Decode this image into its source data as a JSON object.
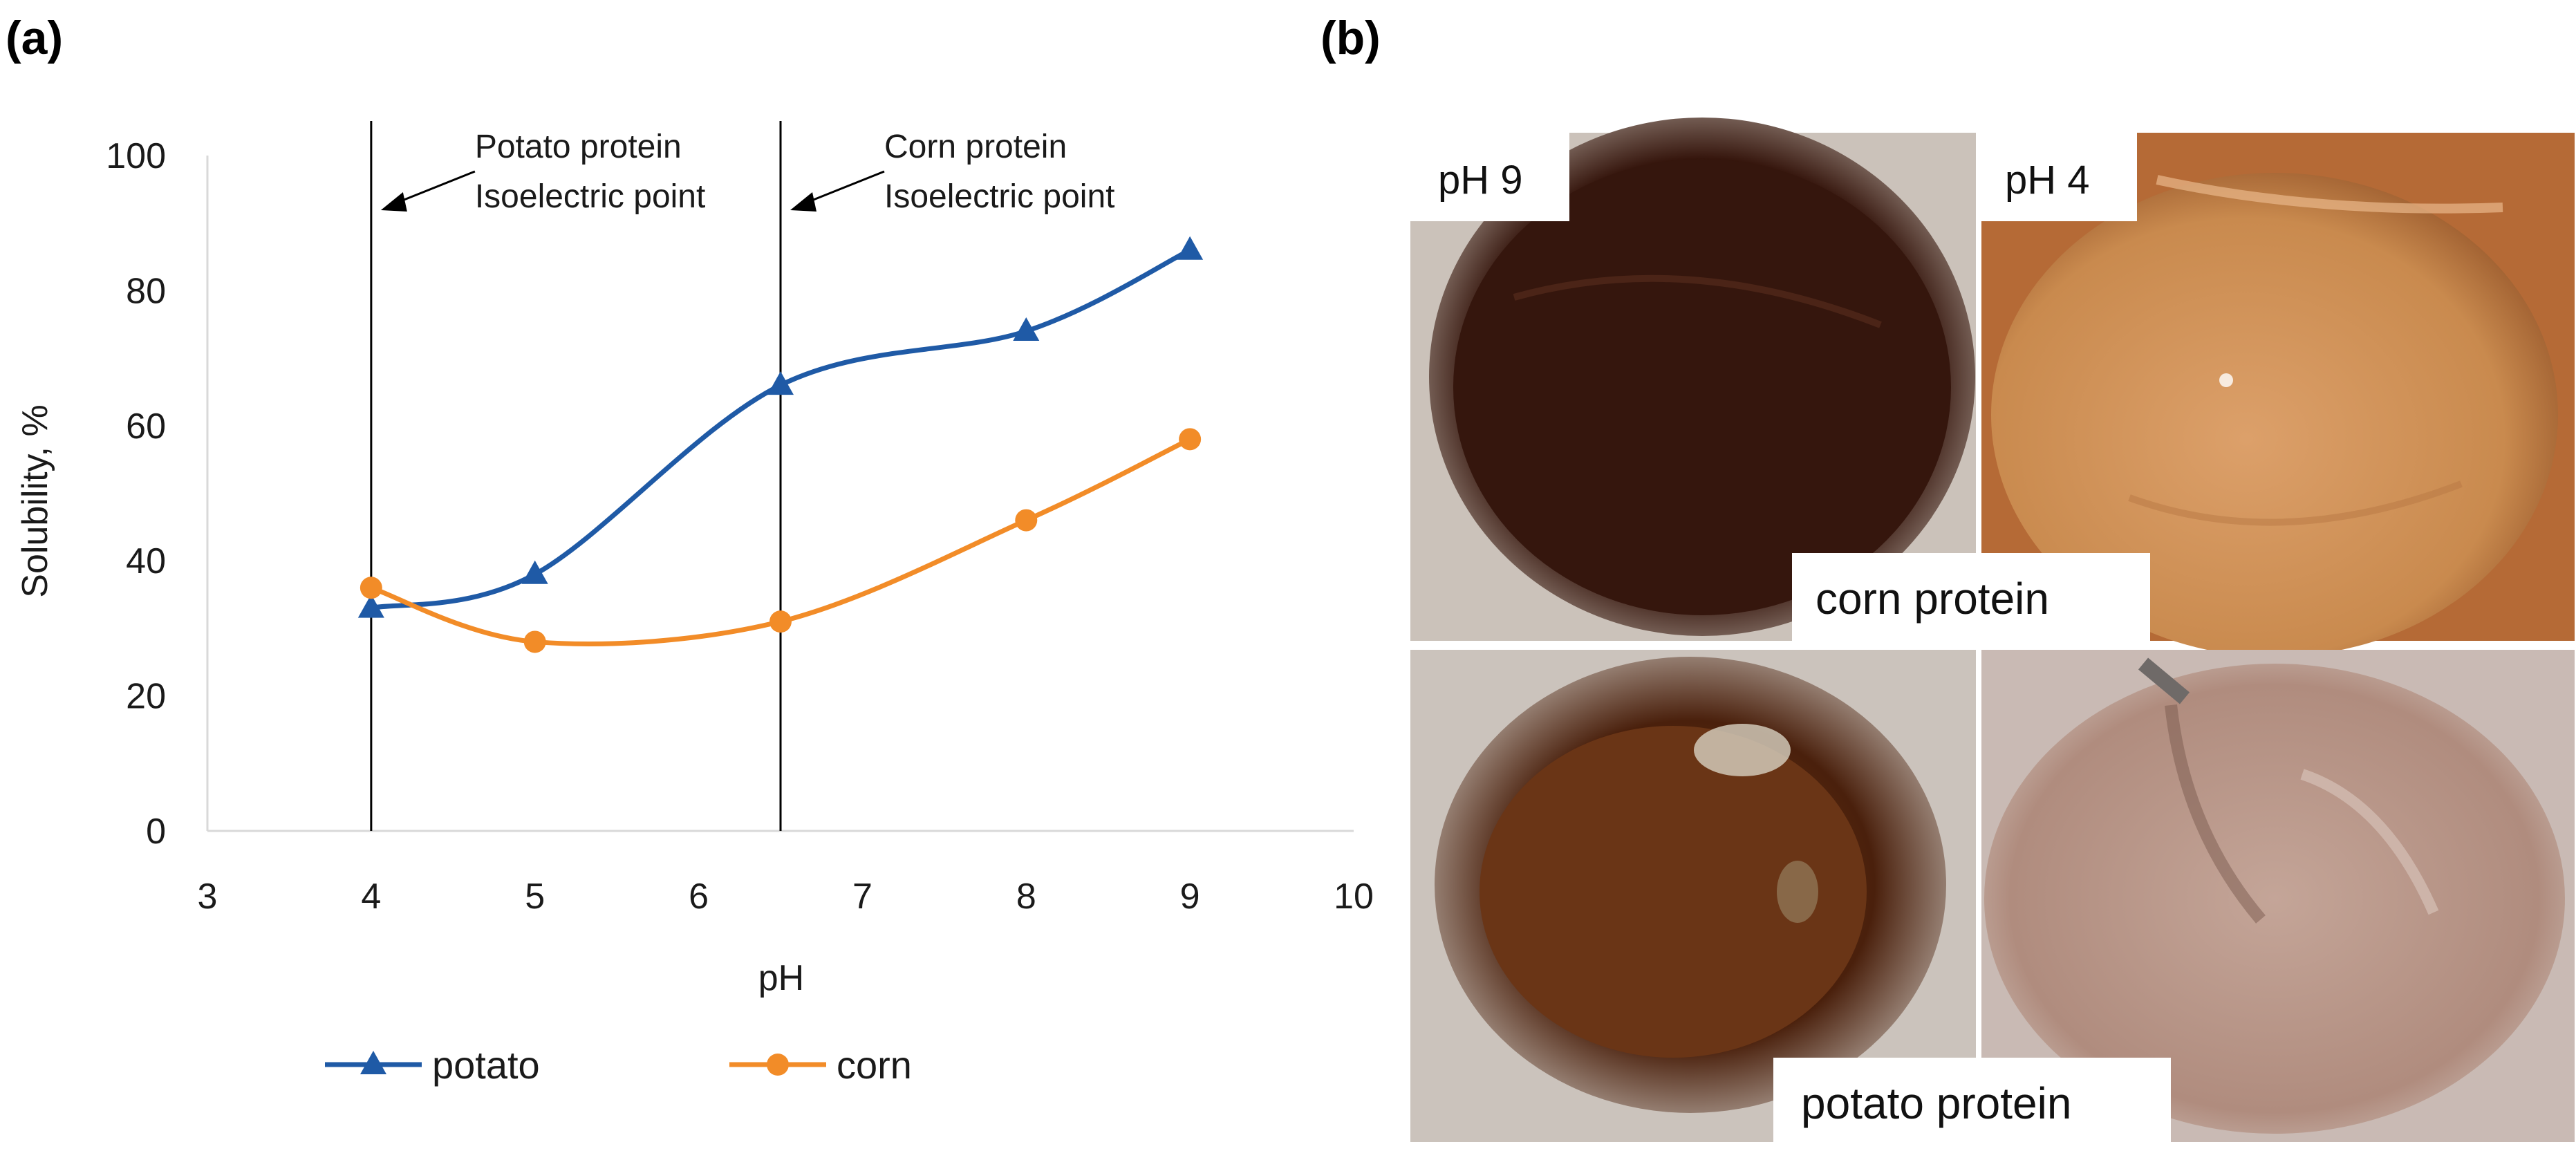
{
  "panel_a_label": "(a)",
  "panel_b_label": "(b)",
  "chart_data": {
    "type": "line",
    "title": "",
    "xlabel": "pH",
    "ylabel": "Solubility, %",
    "xlim": [
      3,
      10
    ],
    "ylim": [
      0,
      100
    ],
    "xticks": [
      3,
      4,
      5,
      6,
      7,
      8,
      9,
      10
    ],
    "yticks": [
      0,
      20,
      40,
      60,
      80,
      100
    ],
    "grid": false,
    "legend_position": "bottom",
    "series": [
      {
        "name": "potato",
        "marker": "triangle",
        "color": "#1F5AA6",
        "x": [
          4,
          5,
          6.5,
          8,
          9
        ],
        "y": [
          33,
          38,
          66,
          74,
          86
        ]
      },
      {
        "name": "corn",
        "marker": "circle",
        "color": "#F28C28",
        "x": [
          4,
          5,
          6.5,
          8,
          9
        ],
        "y": [
          36,
          28,
          31,
          46,
          58
        ]
      }
    ],
    "vlines": [
      {
        "x": 4,
        "label_line1": "Potato protein",
        "label_line2": "Isoelectric point"
      },
      {
        "x": 6.5,
        "label_line1": "Corn protein",
        "label_line2": "Isoelectric point"
      }
    ]
  },
  "photos": {
    "label_ph9": "pH 9",
    "label_ph4": "pH 4",
    "label_corn": "corn protein",
    "label_potato": "potato protein",
    "colors": {
      "corn_ph9": "#3a1a10",
      "corn_ph4": "#c98a4e",
      "potato_ph9": "#5a2a12",
      "potato_ph4": "#b8978a"
    }
  }
}
